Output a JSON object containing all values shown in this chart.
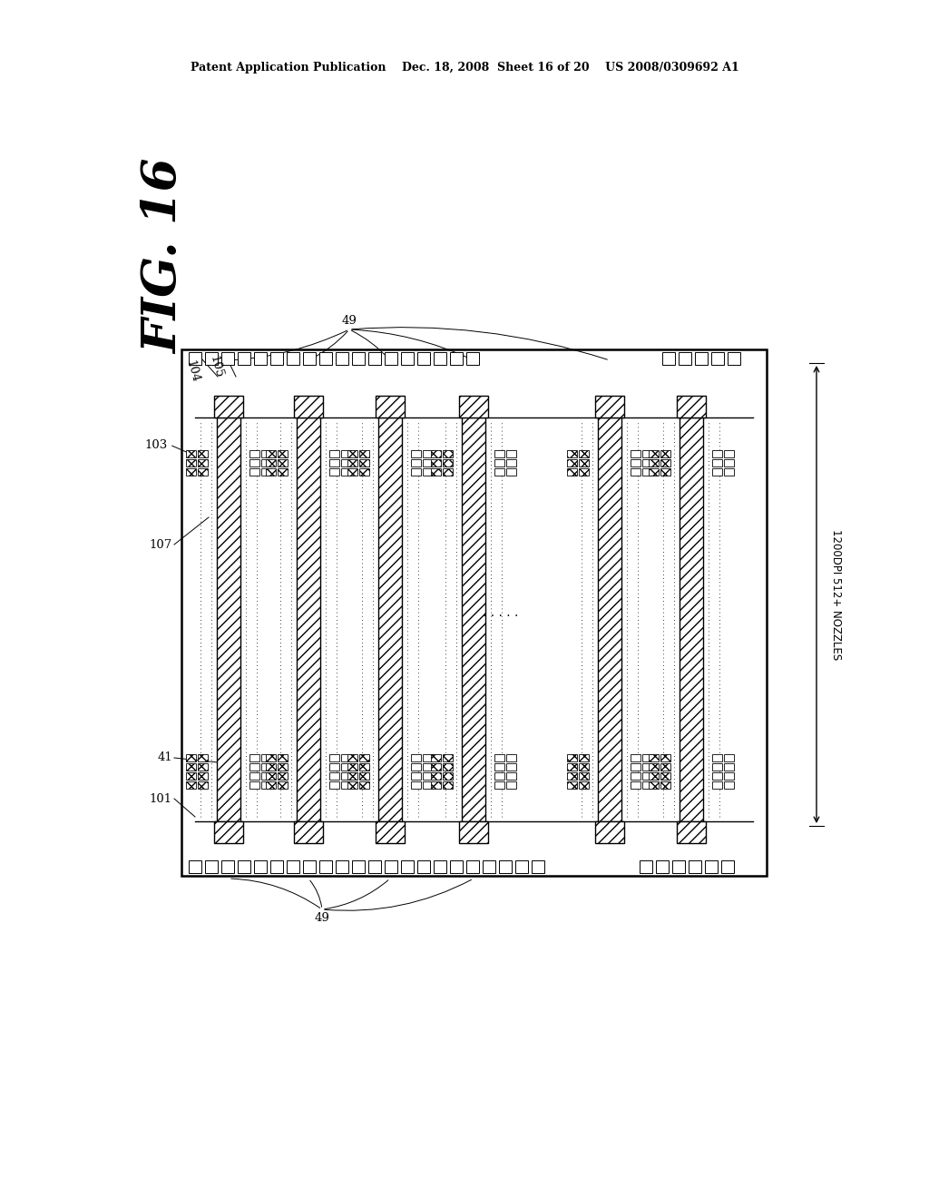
{
  "bg_color": "#ffffff",
  "header": "Patent Application Publication    Dec. 18, 2008  Sheet 16 of 20    US 2008/0309692 A1",
  "fig_label": "FIG. 16",
  "dim_text": "1200DPI 512+ NOZZLES",
  "labels": [
    "103",
    "104",
    "105",
    "49",
    "107",
    "41",
    "101",
    "49"
  ],
  "page_width": 10.24,
  "page_height": 13.2
}
